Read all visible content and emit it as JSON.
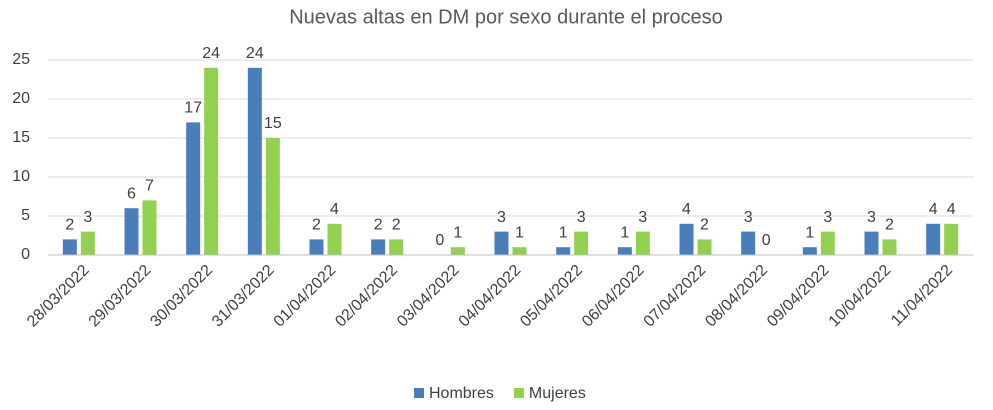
{
  "chart_data": {
    "type": "bar",
    "title": "Nuevas altas en DM por sexo durante el proceso",
    "categories": [
      "28/03/2022",
      "29/03/2022",
      "30/03/2022",
      "31/03/2022",
      "01/04/2022",
      "02/04/2022",
      "03/04/2022",
      "04/04/2022",
      "05/04/2022",
      "06/04/2022",
      "07/04/2022",
      "08/04/2022",
      "09/04/2022",
      "10/04/2022",
      "11/04/2022"
    ],
    "series": [
      {
        "name": "Hombres",
        "color": "#4a7ebb",
        "values": [
          2,
          6,
          17,
          24,
          2,
          2,
          0,
          3,
          1,
          1,
          4,
          3,
          1,
          3,
          4
        ]
      },
      {
        "name": "Mujeres",
        "color": "#92d050",
        "values": [
          3,
          7,
          24,
          15,
          4,
          2,
          1,
          1,
          3,
          3,
          2,
          0,
          3,
          2,
          4
        ]
      }
    ],
    "ylim": [
      0,
      25
    ],
    "yticks": [
      0,
      5,
      10,
      15,
      20,
      25
    ],
    "grid": true,
    "legend": "bottom"
  }
}
